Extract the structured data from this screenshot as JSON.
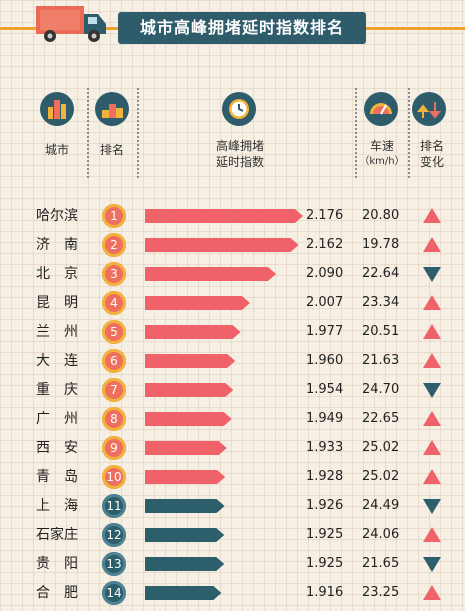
{
  "title": "城市高峰拥堵延时指数排名",
  "colors": {
    "header_bg": "#2f5c6b",
    "accent_orange": "#f0a030",
    "bar_red": "#f0626a",
    "bar_teal": "#2c5f6b",
    "arrow_up": "#f0626a",
    "arrow_down": "#2c5f6b",
    "badge_yellow": "#f2b33a",
    "badge_red": "#ee6f5e",
    "badge_teal": "#2c5f6b"
  },
  "headers": {
    "city": "城市",
    "rank": "排名",
    "index_line1": "高峰拥堵",
    "index_line2": "延时指数",
    "speed_line1": "车速",
    "speed_line2": "（km/h）",
    "change_line1": "排名",
    "change_line2": "变化"
  },
  "header_icons": [
    "city-buildings-icon",
    "podium-icon",
    "clock-icon",
    "speedometer-icon",
    "trend-icon"
  ],
  "chart_data": {
    "type": "bar",
    "rows": [
      {
        "city": "哈尔滨",
        "rank": "1",
        "index": 2.176,
        "index_label": "2.176",
        "speed": "20.80",
        "change": "up"
      },
      {
        "city": "济　南",
        "rank": "2",
        "index": 2.162,
        "index_label": "2.162",
        "speed": "19.78",
        "change": "up"
      },
      {
        "city": "北　京",
        "rank": "3",
        "index": 2.09,
        "index_label": "2.090",
        "speed": "22.64",
        "change": "down"
      },
      {
        "city": "昆　明",
        "rank": "4",
        "index": 2.007,
        "index_label": "2.007",
        "speed": "23.34",
        "change": "up"
      },
      {
        "city": "兰　州",
        "rank": "5",
        "index": 1.977,
        "index_label": "1.977",
        "speed": "20.51",
        "change": "up"
      },
      {
        "city": "大　连",
        "rank": "6",
        "index": 1.96,
        "index_label": "1.960",
        "speed": "21.63",
        "change": "up"
      },
      {
        "city": "重　庆",
        "rank": "7",
        "index": 1.954,
        "index_label": "1.954",
        "speed": "24.70",
        "change": "down"
      },
      {
        "city": "广　州",
        "rank": "8",
        "index": 1.949,
        "index_label": "1.949",
        "speed": "22.65",
        "change": "up"
      },
      {
        "city": "西　安",
        "rank": "9",
        "index": 1.933,
        "index_label": "1.933",
        "speed": "25.02",
        "change": "up"
      },
      {
        "city": "青　岛",
        "rank": "10",
        "index": 1.928,
        "index_label": "1.928",
        "speed": "25.02",
        "change": "up"
      },
      {
        "city": "上　海",
        "rank": "11",
        "index": 1.926,
        "index_label": "1.926",
        "speed": "24.49",
        "change": "down"
      },
      {
        "city": "石家庄",
        "rank": "12",
        "index": 1.925,
        "index_label": "1.925",
        "speed": "24.06",
        "change": "up"
      },
      {
        "city": "贵　阳",
        "rank": "13",
        "index": 1.925,
        "index_label": "1.925",
        "speed": "21.65",
        "change": "down"
      },
      {
        "city": "合　肥",
        "rank": "14",
        "index": 1.916,
        "index_label": "1.916",
        "speed": "23.25",
        "change": "up"
      }
    ]
  }
}
